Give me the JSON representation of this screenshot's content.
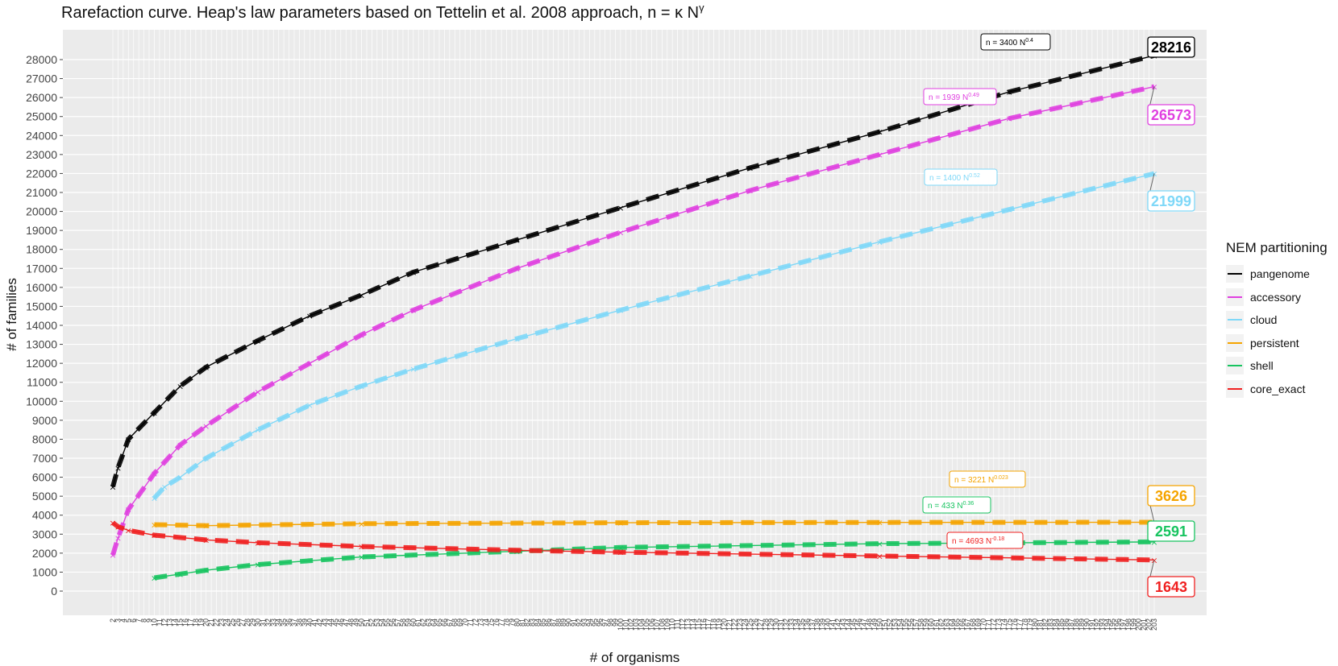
{
  "chart_data": {
    "type": "line",
    "title": "Rarefaction curve. Heap's law parameters based on Tettelin et al. 2008 approach, n = κ N",
    "title_superscript": "γ",
    "xlabel": "# of organisms",
    "ylabel": "# of families",
    "x_range": [
      2,
      203
    ],
    "ylim": [
      0,
      28000
    ],
    "y_ticks": [
      0,
      1000,
      2000,
      3000,
      4000,
      5000,
      6000,
      7000,
      8000,
      9000,
      10000,
      11000,
      12000,
      13000,
      14000,
      15000,
      16000,
      17000,
      18000,
      19000,
      20000,
      21000,
      22000,
      23000,
      24000,
      25000,
      26000,
      27000,
      28000
    ],
    "grid": true,
    "legend_placement": "right",
    "legend_title": "NEM partitioning",
    "series": [
      {
        "name": "pangenome",
        "color": "#000000",
        "fit_label": "n = 3400 N",
        "fit_exp": "0.4",
        "final_value": "28216",
        "x": [
          2,
          3,
          5,
          10,
          15,
          20,
          30,
          40,
          50,
          60,
          80,
          100,
          125,
          150,
          175,
          203
        ],
        "values": [
          5500,
          6500,
          8000,
          9400,
          10800,
          11800,
          13200,
          14500,
          15600,
          16800,
          18500,
          20200,
          22300,
          24200,
          26300,
          28216
        ]
      },
      {
        "name": "accessory",
        "color": "#e040e0",
        "fit_label": "n = 1939 N",
        "fit_exp": "0.49",
        "final_value": "26573",
        "x": [
          2,
          3,
          5,
          10,
          15,
          20,
          30,
          40,
          50,
          60,
          80,
          100,
          125,
          150,
          175,
          203
        ],
        "values": [
          1900,
          2800,
          4300,
          6200,
          7700,
          8700,
          10500,
          12000,
          13500,
          14800,
          17000,
          18900,
          21100,
          23000,
          24900,
          26573
        ]
      },
      {
        "name": "cloud",
        "color": "#7fd8f8",
        "fit_label": "n = 1400 N",
        "fit_exp": "0.52",
        "final_value": "21999",
        "x": [
          10,
          12,
          15,
          20,
          30,
          40,
          50,
          60,
          80,
          100,
          125,
          150,
          175,
          203
        ],
        "values": [
          4900,
          5500,
          6000,
          7000,
          8500,
          9800,
          10800,
          11700,
          13300,
          14800,
          16600,
          18400,
          20100,
          21999
        ]
      },
      {
        "name": "persistent",
        "color": "#f5a400",
        "fit_label": "n = 3221 N",
        "fit_exp": "0.023",
        "final_value": "3626",
        "x": [
          10,
          20,
          50,
          100,
          150,
          203
        ],
        "values": [
          3500,
          3450,
          3550,
          3600,
          3620,
          3626
        ]
      },
      {
        "name": "shell",
        "color": "#18c460",
        "fit_label": "n = 433 N",
        "fit_exp": "0.36",
        "final_value": "2591",
        "x": [
          10,
          15,
          20,
          30,
          50,
          80,
          100,
          150,
          203
        ],
        "values": [
          700,
          900,
          1100,
          1400,
          1800,
          2100,
          2300,
          2500,
          2591
        ]
      },
      {
        "name": "core_exact",
        "color": "#f02020",
        "fit_label": "n = 4693 N",
        "fit_exp": "-0.18",
        "final_value": "1643",
        "x": [
          2,
          3,
          5,
          10,
          20,
          30,
          50,
          80,
          100,
          150,
          203
        ],
        "values": [
          3600,
          3400,
          3200,
          2950,
          2700,
          2550,
          2350,
          2150,
          2050,
          1850,
          1643
        ]
      }
    ]
  }
}
